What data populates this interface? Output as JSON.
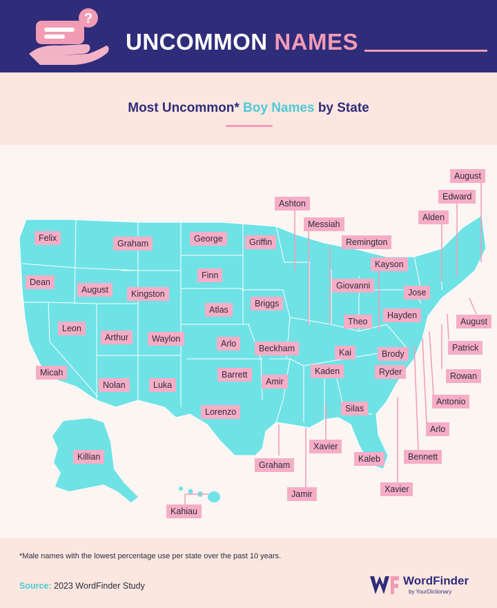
{
  "header": {
    "title_main": "UNCOMMON",
    "title_accent": "NAMES"
  },
  "subtitle": {
    "part1": "Most Uncommon*",
    "accent": "Boy Names",
    "part2": "by State"
  },
  "map_labels": {
    "washington": "Felix",
    "oregon": "Dean",
    "california": "Micah",
    "nevada": "Leon",
    "idaho": "August",
    "montana": "Graham",
    "wyoming": "Kingston",
    "utah": "Arthur",
    "colorado": "Waylon",
    "arizona": "Nolan",
    "new_mexico": "Luka",
    "north_dakota": "George",
    "south_dakota": "Finn",
    "nebraska": "Atlas",
    "kansas": "Arlo",
    "oklahoma": "Barrett",
    "texas": "Lorenzo",
    "minnesota": "Griffin",
    "iowa": "Briggs",
    "missouri": "Beckham",
    "arkansas": "Amir",
    "louisiana": "Graham",
    "wisconsin": "Ashton",
    "illinois": "Messiah",
    "indiana": "Remington",
    "michigan": "Giovanni",
    "ohio": "Kayson",
    "kentucky": "Theo",
    "tennessee": "Kaden",
    "mississippi": "Jamir",
    "alabama": "Xavier",
    "georgia": "Silas",
    "florida": "Kaleb",
    "south_carolina": "Xavier",
    "north_carolina": "Ryder",
    "virginia": "Brody",
    "west_virginia": "Kai",
    "pennsylvania": "Hayden",
    "new_york": "Jose",
    "maine": "August",
    "new_hampshire": "Edward",
    "vermont": "Alden",
    "massachusetts": "August",
    "rhode_island": "Patrick",
    "connecticut": "Rowan",
    "new_jersey": "Antonio",
    "delaware": "Arlo",
    "maryland": "Bennett",
    "alaska": "Killian",
    "hawaii": "Kahiau"
  },
  "footer": {
    "footnote": "*Male names with the lowest percentage use per state over the past 10 years.",
    "source_label": "Source:",
    "source_text": "2023 WordFinder Study",
    "brand_name": "WordFinder",
    "brand_sub": "by YourDictionary"
  },
  "colors": {
    "navy": "#2f2c7a",
    "pink": "#f29bb5",
    "map_teal": "#6fe2e6",
    "label_pink": "#f6adc6"
  }
}
